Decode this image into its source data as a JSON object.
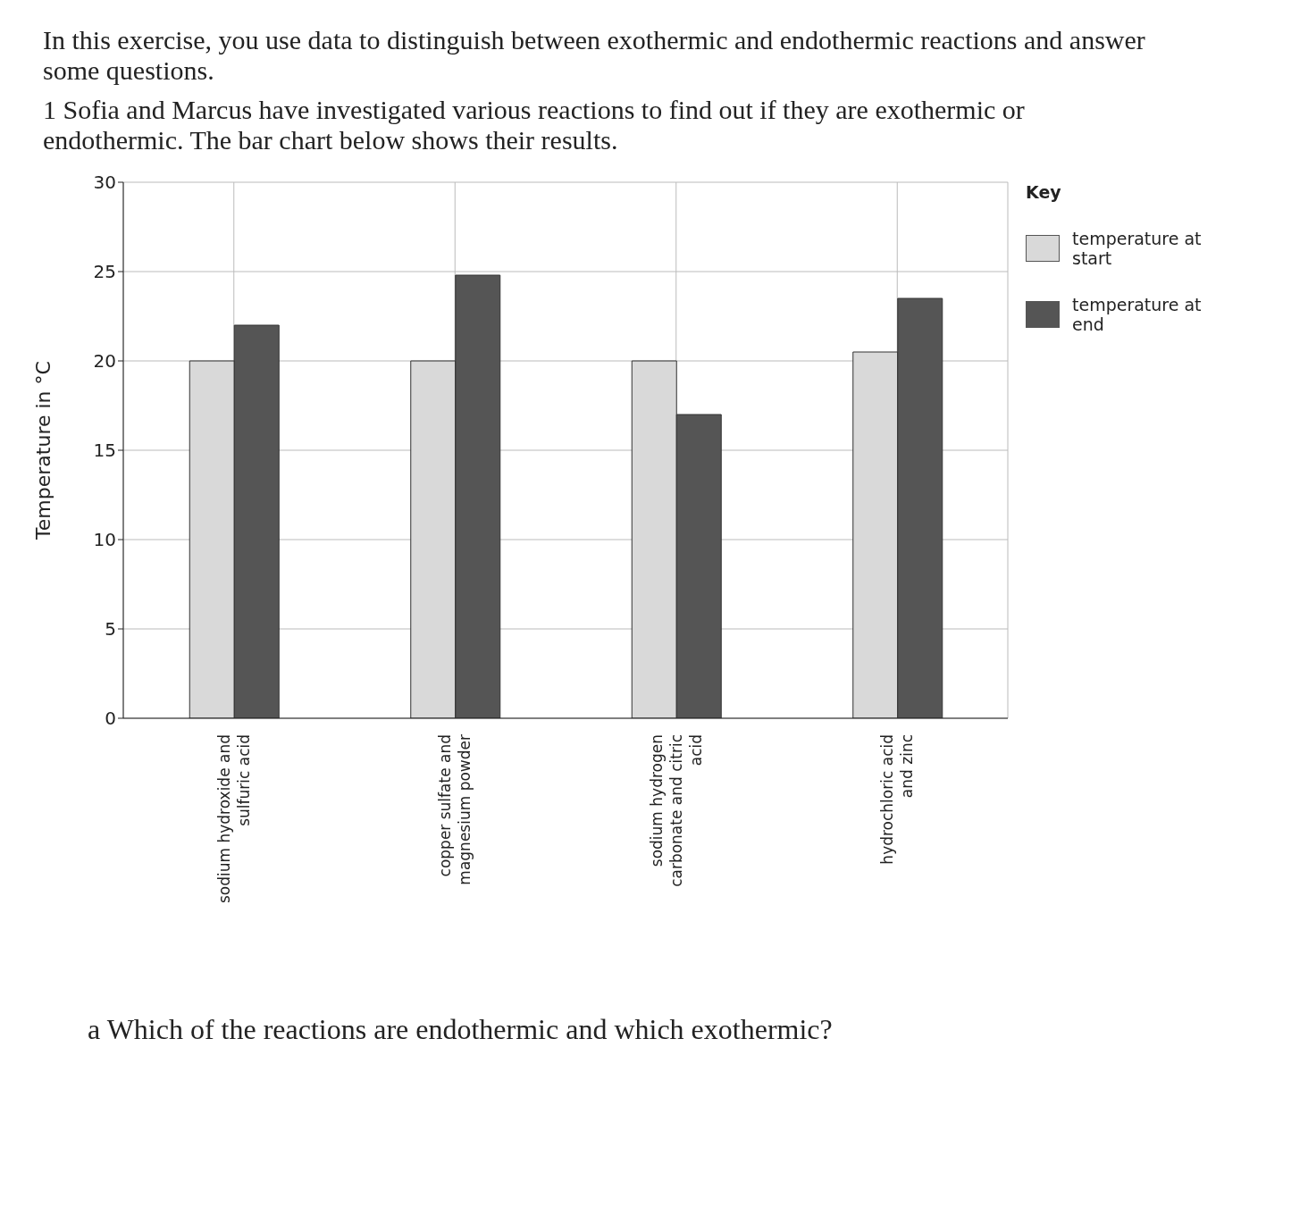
{
  "chart_data": {
    "type": "bar",
    "title": "In this exercise, you use data to distinguish between exothermic and endothermic reactions and answer some questions.",
    "subtitle": "1 Sofia and Marcus have investigated various reactions to find out if they are exothermic or endothermic. The bar chart below shows their results.",
    "ylabel": "Temperature in °C",
    "legend_title": "Key",
    "categories": [
      "sodium hydroxide and sulfuric acid",
      "copper sulfate and magnesium powder",
      "sodium hydrogen carbonate and citric acid",
      "hydrochloric acid and zinc"
    ],
    "series": [
      {
        "name": "temperature at start",
        "color": "#d9d9d9",
        "values": [
          20,
          20,
          20,
          20.5
        ]
      },
      {
        "name": "temperature at end",
        "color": "#555555",
        "values": [
          22,
          24.8,
          17,
          23.5
        ]
      }
    ],
    "ylim": [
      0,
      30
    ],
    "yticks": [
      0,
      5,
      10,
      15,
      20,
      25,
      30
    ],
    "grid": true,
    "legend": "right",
    "annotations": [
      "a Which of the reactions are endothermic and which exothermic?"
    ]
  }
}
